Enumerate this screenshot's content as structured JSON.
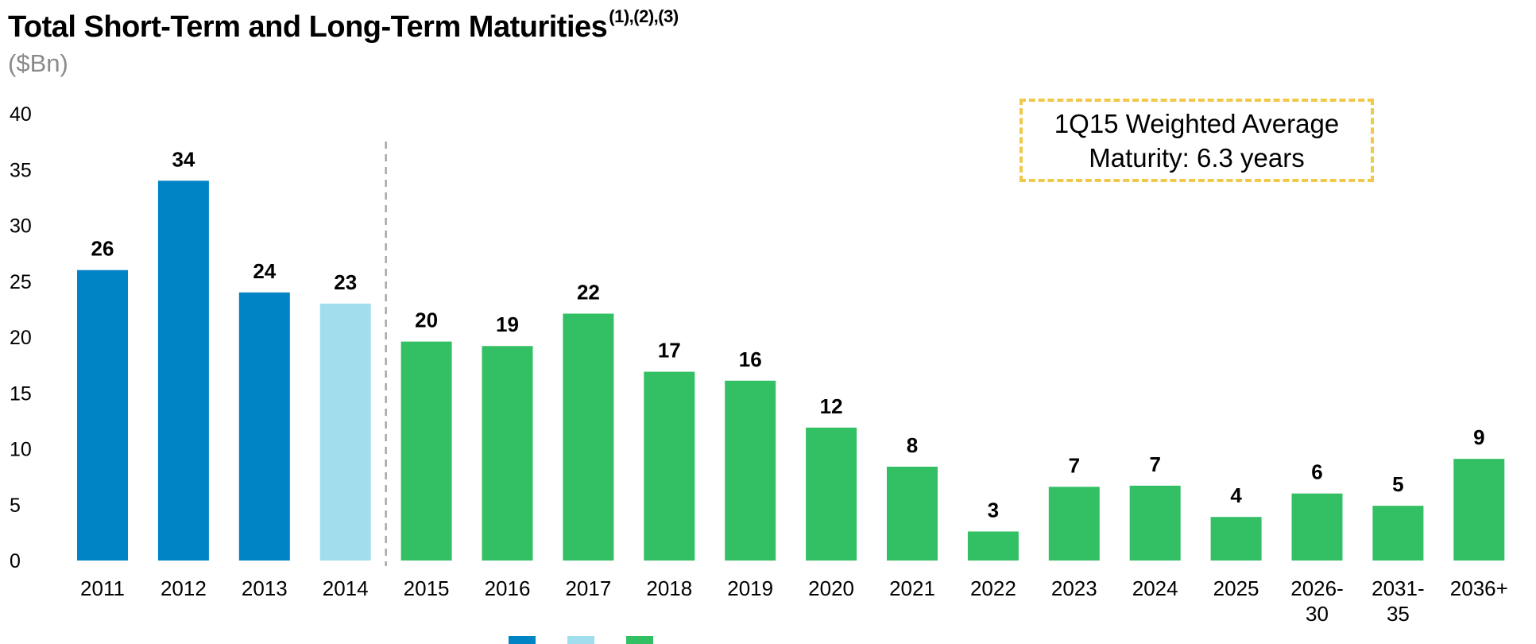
{
  "title": "Total Short-Term and Long-Term Maturities",
  "title_superscript": "(1),(2),(3)",
  "subtitle": "($Bn)",
  "callout": "1Q15 Weighted Average Maturity: 6.3 years",
  "colors": {
    "historical": "#0084c6",
    "current": "#a0deed",
    "future": "#33c064",
    "callout_border": "#f0c84a",
    "divider": "#a8a8a8"
  },
  "chart_data": {
    "type": "bar",
    "categories": [
      "2011",
      "2012",
      "2013",
      "2014",
      "2015",
      "2016",
      "2017",
      "2018",
      "2019",
      "2020",
      "2021",
      "2022",
      "2023",
      "2024",
      "2025",
      "2026-30",
      "2031-35",
      "2036+"
    ],
    "category_lines": [
      [
        "2011"
      ],
      [
        "2012"
      ],
      [
        "2013"
      ],
      [
        "2014"
      ],
      [
        "2015"
      ],
      [
        "2016"
      ],
      [
        "2017"
      ],
      [
        "2018"
      ],
      [
        "2019"
      ],
      [
        "2020"
      ],
      [
        "2021"
      ],
      [
        "2022"
      ],
      [
        "2023"
      ],
      [
        "2024"
      ],
      [
        "2025"
      ],
      [
        "2026-",
        "30"
      ],
      [
        "2031-",
        "35"
      ],
      [
        "2036+"
      ]
    ],
    "values": [
      26,
      34,
      24,
      23,
      19.6,
      19.2,
      22.1,
      16.9,
      16.1,
      11.9,
      8.4,
      2.6,
      6.6,
      6.7,
      3.9,
      6.0,
      4.9,
      9.1
    ],
    "labels": [
      "26",
      "34",
      "24",
      "23",
      "20",
      "19",
      "22",
      "17",
      "16",
      "12",
      "8",
      "3",
      "7",
      "7",
      "4",
      "6",
      "5",
      "9"
    ],
    "groups": [
      "historical",
      "historical",
      "historical",
      "current",
      "future",
      "future",
      "future",
      "future",
      "future",
      "future",
      "future",
      "future",
      "future",
      "future",
      "future",
      "future",
      "future",
      "future"
    ],
    "divider_after_index": 3,
    "ylim": [
      0,
      40
    ],
    "yticks": [
      "0",
      "5",
      "10",
      "15",
      "20",
      "25",
      "30",
      "35",
      "40"
    ],
    "xlabel": "",
    "ylabel": "",
    "grid": false
  }
}
